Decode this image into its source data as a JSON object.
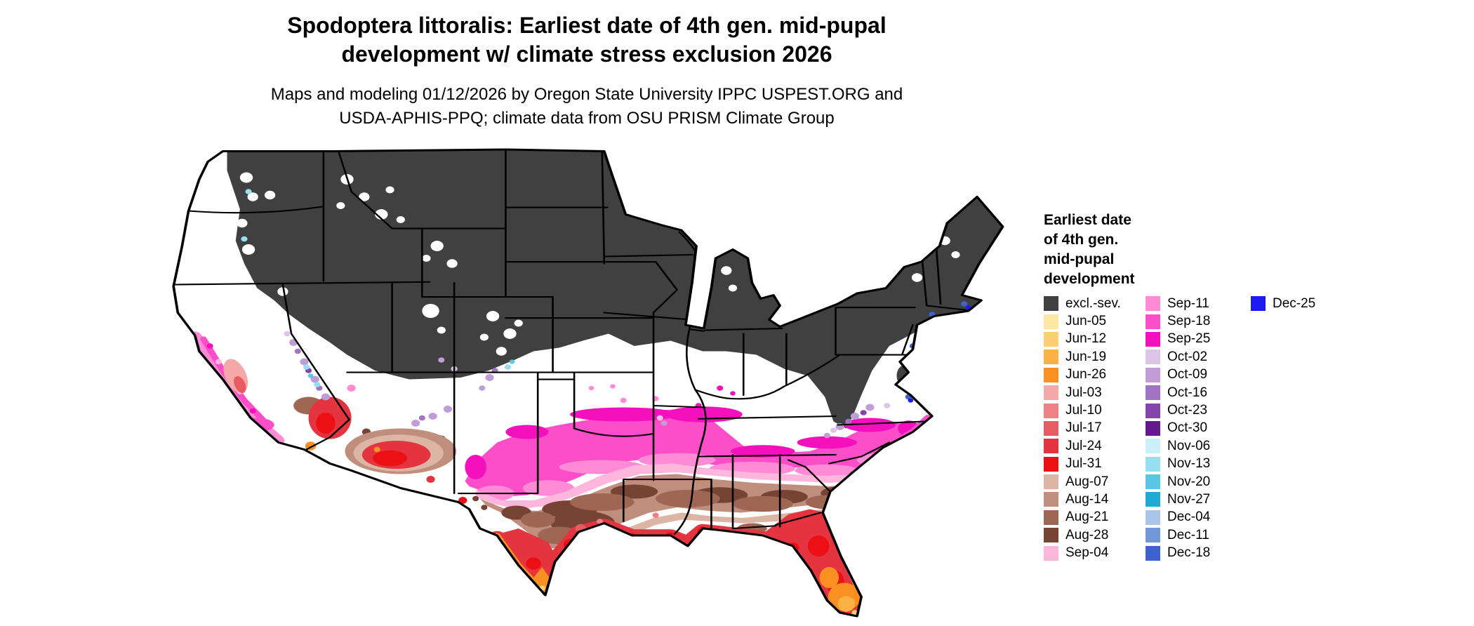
{
  "header": {
    "title_line1": "Spodoptera littoralis: Earliest date of 4th gen. mid-pupal",
    "title_line2": "development w/ climate stress exclusion 2026",
    "subtitle_line1": "Maps and modeling 01/12/2026 by Oregon State University IPPC USPEST.ORG and",
    "subtitle_line2": "USDA-APHIS-PPQ; climate data from OSU PRISM Climate Group"
  },
  "legend": {
    "title_lines": [
      "Earliest date",
      "of 4th gen.",
      "mid-pupal",
      "development"
    ],
    "columns": [
      [
        {
          "label": "excl.-sev.",
          "color": "#404040"
        },
        {
          "label": "Jun-05",
          "color": "#fde8a3"
        },
        {
          "label": "Jun-12",
          "color": "#fdcf72"
        },
        {
          "label": "Jun-19",
          "color": "#fdb143"
        },
        {
          "label": "Jun-26",
          "color": "#fb9022"
        },
        {
          "label": "Jul-03",
          "color": "#f5a8a8"
        },
        {
          "label": "Jul-10",
          "color": "#ef8086"
        },
        {
          "label": "Jul-17",
          "color": "#e75b63"
        },
        {
          "label": "Jul-24",
          "color": "#e3343f"
        },
        {
          "label": "Jul-31",
          "color": "#ec0f14"
        },
        {
          "label": "Aug-07",
          "color": "#dcb5a5"
        },
        {
          "label": "Aug-14",
          "color": "#c08e7c"
        },
        {
          "label": "Aug-21",
          "color": "#9d6753"
        },
        {
          "label": "Aug-28",
          "color": "#774334"
        },
        {
          "label": "Sep-04",
          "color": "#ffb6dc"
        }
      ],
      [
        {
          "label": "Sep-11",
          "color": "#ff8ad6"
        },
        {
          "label": "Sep-18",
          "color": "#fc4ec9"
        },
        {
          "label": "Sep-25",
          "color": "#f510bd"
        },
        {
          "label": "Oct-02",
          "color": "#dcc4e6"
        },
        {
          "label": "Oct-09",
          "color": "#c09dd6"
        },
        {
          "label": "Oct-16",
          "color": "#a273c2"
        },
        {
          "label": "Oct-23",
          "color": "#8446ab"
        },
        {
          "label": "Oct-30",
          "color": "#661a90"
        },
        {
          "label": "Nov-06",
          "color": "#ccf0f8"
        },
        {
          "label": "Nov-13",
          "color": "#97def0"
        },
        {
          "label": "Nov-20",
          "color": "#5ac6e3"
        },
        {
          "label": "Nov-27",
          "color": "#20a9d3"
        },
        {
          "label": "Dec-04",
          "color": "#a9c6e8"
        },
        {
          "label": "Dec-11",
          "color": "#7298d8"
        },
        {
          "label": "Dec-18",
          "color": "#3d63cb"
        }
      ],
      [
        {
          "label": "Dec-25",
          "color": "#1b1bf0"
        }
      ]
    ]
  },
  "map": {
    "land": "#ffffff",
    "border": "#000000"
  }
}
